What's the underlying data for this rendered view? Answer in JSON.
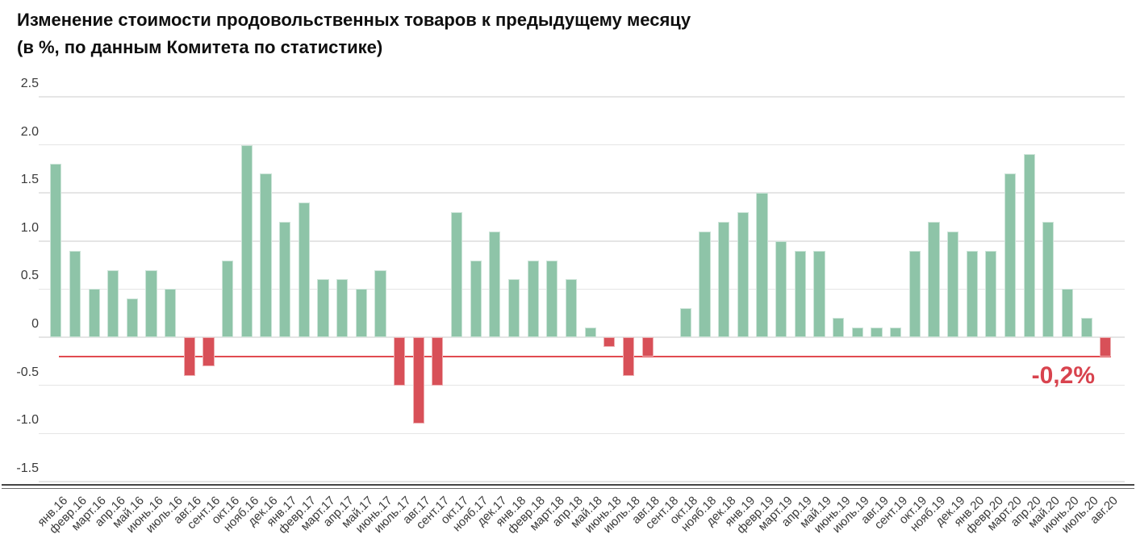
{
  "colors": {
    "positive_bar": "#8ec4a8",
    "negative_bar": "#d85058",
    "reference_line": "#e14b50",
    "annotation_text": "#d8434e",
    "grid": "#e5e5e5",
    "axis_line": "#454545",
    "tick_text": "#3a3a3a",
    "title_text": "#0f0f0f",
    "background": "#ffffff"
  },
  "chart_data": {
    "type": "bar",
    "title": "Изменение стоимости продовольственных товаров к предыдущему месяцу",
    "subtitle": "(в %, по данным Комитета по статистике)",
    "grid": true,
    "legend": "none",
    "ylim": [
      -1.5,
      2.5
    ],
    "ytick_labels": [
      "2.5",
      "2.0",
      "1.5",
      "1.0",
      "0.5",
      "0",
      "-0.5",
      "-1.0",
      "-1.5"
    ],
    "reference_line": {
      "value": -0.2,
      "label": "-0,2%"
    },
    "categories": [
      "янв.16",
      "февр.16",
      "март.16",
      "апр.16",
      "май.16",
      "июнь.16",
      "июль.16",
      "авг.16",
      "сент.16",
      "окт.16",
      "нояб.16",
      "дек.16",
      "янв.17",
      "февр.17",
      "март.17",
      "апр.17",
      "май.17",
      "июнь.17",
      "июль.17",
      "авг.17",
      "сент.17",
      "окт.17",
      "нояб.17",
      "дек.17",
      "янв.18",
      "февр.18",
      "март.18",
      "апр.18",
      "май.18",
      "июнь.18",
      "июль.18",
      "авг.18",
      "сент.18",
      "окт.18",
      "нояб.18",
      "дек.18",
      "янв.19",
      "февр.19",
      "март.19",
      "апр.19",
      "май.19",
      "июнь.19",
      "июль.19",
      "авг.19",
      "сент.19",
      "окт.19",
      "нояб.19",
      "дек.19",
      "янв.20",
      "февр.20",
      "март.20",
      "апр.20",
      "май.20",
      "июнь.20",
      "июль.20",
      "авг.20"
    ],
    "values": [
      1.8,
      0.9,
      0.5,
      0.7,
      0.4,
      0.7,
      0.5,
      -0.4,
      -0.3,
      0.8,
      2.0,
      1.7,
      1.2,
      1.4,
      0.6,
      0.6,
      0.5,
      0.7,
      -0.5,
      -0.9,
      -0.5,
      1.3,
      0.8,
      1.1,
      0.6,
      0.8,
      0.8,
      0.6,
      0.1,
      -0.1,
      -0.4,
      -0.2,
      0.0,
      0.3,
      1.1,
      1.2,
      1.3,
      1.5,
      1.0,
      0.9,
      0.9,
      0.2,
      0.1,
      0.1,
      0.1,
      0.9,
      1.2,
      1.1,
      0.9,
      0.9,
      1.7,
      1.9,
      1.2,
      0.5,
      0.2,
      -0.2
    ]
  }
}
